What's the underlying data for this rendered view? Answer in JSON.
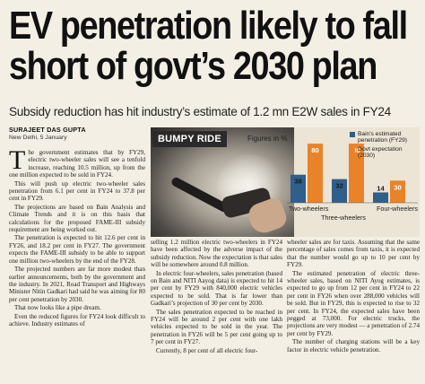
{
  "headline": {
    "line1": "EV penetration likely to fall",
    "line2": "short of govt’s 2030 plan"
  },
  "subheadline": "Subsidy reduction has hit industry’s estimate of 1.2 mn E2W sales in FY24",
  "byline": {
    "author": "SURAJEET DAS GUPTA",
    "dateline": "New Delhi, 5 January"
  },
  "graphic": {
    "badge": "BUMPY RIDE",
    "units": "Figures in %"
  },
  "chart_data": {
    "type": "bar",
    "categories": [
      "Two-wheelers",
      "Three-wheelers",
      "Four-wheelers"
    ],
    "series": [
      {
        "name": "Bain’s estimated penetration (FY29)",
        "values": [
          38,
          32,
          14
        ]
      },
      {
        "name": "Govt expectation (2030)",
        "values": [
          80,
          80,
          30
        ]
      }
    ],
    "ylim": [
      0,
      85
    ],
    "colors": {
      "bain": "#2f5f8a",
      "govt": "#e8832a"
    },
    "legend_position": "top-right",
    "grid": false
  },
  "column1": {
    "dropcap": "T",
    "p1": "he government estimates that by FY29, electric two-wheeler sales will see a tenfold increase, reaching 10.5 million, up from the one million expected to be sold in FY24.",
    "p2": "This will push up electric two-wheeler sales penetration from 6.1 per cent in FY24 to 37.8 per cent in FY29.",
    "p3": "The projections are based on Bain Analysis and Climate Trends and it is on this basis that calculations for the proposed FAME-III subsidy requirement are being worked out.",
    "p4": "The penetration is expected to hit 12.6 per cent in FY26, and 18.2 per cent in FY27. The government expects the FAME-III subsidy to be able to support one million two-wheelers by the end of the FY28.",
    "p5": "The projected numbers are far more modest than earlier announcements, both by the government and the industry. In 2021, Road Transport and Highways Minister Nitin Gadkari had said he was aiming for 80 per cent penetration by 2030.",
    "p6": "That now looks like a pipe dream.",
    "p7": "Even the reduced figures for FY24 look difficult to achieve. Industry estimates of"
  },
  "column2": {
    "p1": "selling 1.2 million electric two-wheelers in FY24 have been affected by the adverse impact of the subsidy reduction. Now the expectation is that sales will be somewhere around 0.8 million.",
    "p2": "In electric four-wheelers, sales penetration (based on Bain and NITI Aayog data) is expected to hit 14 per cent by FY29 with 840,000 electric vehicles expected to be sold. That is far lower than Gadkari’s projection of 30 per cent by 2030.",
    "p3": "The sales penetration expected to be reached in FY24 will be around 2 per cent with one lakh vehicles expected to be sold in the year. The penetration in FY26 will be 5 per cent going up to 7 per cent in FY27.",
    "p4": "Currently, 8 per cent of all electric four-"
  },
  "column3": {
    "p1": "wheeler sales are for taxis. Assuming that the same percentage of sales comes from taxis, it is expected that the number would go up to 10 per cent by FY29.",
    "p2": "The estimated penetration of electric three-wheeler sales, based on NITI Ayog estimates, is expected to go up from 12 per cent in FY24 to 22 per cent in FY26 when over 288,000 vehicles will be sold. But in FY29, this is expected to rise to 32 per cent. In FY24, the expected sales have been pegged at 73,000. For electric trucks, the projections are very modest — a penetration of 2.74 per cent by FY29.",
    "p3": "The number of charging stations will be a key factor in electric vehicle penetration."
  }
}
